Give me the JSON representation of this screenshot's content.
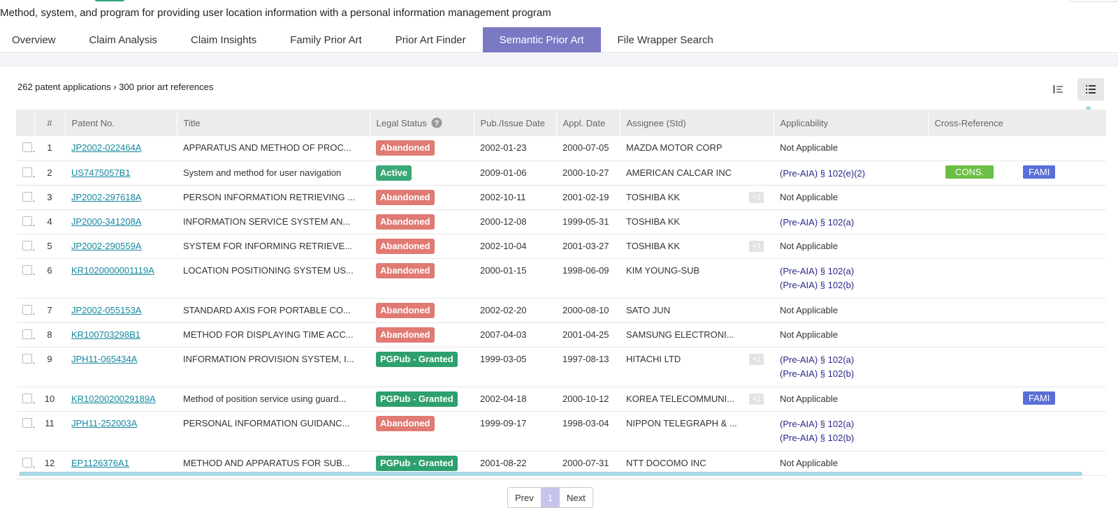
{
  "document": {
    "title": "Method, system, and program for providing user location information with a personal information management program"
  },
  "tabs": [
    {
      "label": "Overview"
    },
    {
      "label": "Claim Analysis"
    },
    {
      "label": "Claim Insights"
    },
    {
      "label": "Family Prior Art"
    },
    {
      "label": "Prior Art Finder"
    },
    {
      "label": "Semantic Prior Art",
      "active": true
    },
    {
      "label": "File Wrapper Search"
    }
  ],
  "summary": {
    "text": "262 patent applications › 300 prior art references"
  },
  "view_buttons": {
    "split_icon": "split-view-icon",
    "list_icon": "list-view-icon"
  },
  "columns": {
    "num": "#",
    "patent_no": "Patent No.",
    "title": "Title",
    "legal_status": "Legal Status",
    "pub_date": "Pub./Issue Date",
    "appl_date": "Appl. Date",
    "assignee": "Assignee (Std)",
    "applicability": "Applicability",
    "cross_ref": "Cross-Reference"
  },
  "rows": [
    {
      "num": "1",
      "patent_no": "JP2002-022464A",
      "title": "APPARATUS AND METHOD OF PROC...",
      "status": "Abandoned",
      "pub": "2002-01-23",
      "appl": "2000-07-05",
      "assignee": "MAZDA MOTOR CORP",
      "plus": "",
      "applicability": [
        "Not Applicable"
      ],
      "cons": "",
      "fami": ""
    },
    {
      "num": "2",
      "patent_no": "US7475057B1",
      "title": "System and method for user navigation",
      "status": "Active",
      "pub": "2009-01-06",
      "appl": "2000-10-27",
      "assignee": "AMERICAN CALCAR INC",
      "plus": "",
      "applicability": [
        "(Pre-AIA) § 102(e)(2)"
      ],
      "cons": "CONS.",
      "fami": "FAMI"
    },
    {
      "num": "3",
      "patent_no": "JP2002-297618A",
      "title": "PERSON INFORMATION RETRIEVING ...",
      "status": "Abandoned",
      "pub": "2002-10-11",
      "appl": "2001-02-19",
      "assignee": "TOSHIBA KK",
      "plus": "+1",
      "applicability": [
        "Not Applicable"
      ],
      "cons": "",
      "fami": ""
    },
    {
      "num": "4",
      "patent_no": "JP2000-341208A",
      "title": "INFORMATION SERVICE SYSTEM AN...",
      "status": "Abandoned",
      "pub": "2000-12-08",
      "appl": "1999-05-31",
      "assignee": "TOSHIBA KK",
      "plus": "",
      "applicability": [
        "(Pre-AIA) § 102(a)"
      ],
      "cons": "",
      "fami": ""
    },
    {
      "num": "5",
      "patent_no": "JP2002-290559A",
      "title": "SYSTEM FOR INFORMING RETRIEVE...",
      "status": "Abandoned",
      "pub": "2002-10-04",
      "appl": "2001-03-27",
      "assignee": "TOSHIBA KK",
      "plus": "+1",
      "applicability": [
        "Not Applicable"
      ],
      "cons": "",
      "fami": ""
    },
    {
      "num": "6",
      "patent_no": "KR1020000001119A",
      "title": "LOCATION POSITIONING SYSTEM US...",
      "status": "Abandoned",
      "pub": "2000-01-15",
      "appl": "1998-06-09",
      "assignee": "KIM YOUNG-SUB",
      "plus": "",
      "applicability": [
        "(Pre-AIA) § 102(a)",
        "(Pre-AIA) § 102(b)"
      ],
      "cons": "",
      "fami": ""
    },
    {
      "num": "7",
      "patent_no": "JP2002-055153A",
      "title": "STANDARD AXIS FOR PORTABLE CO...",
      "status": "Abandoned",
      "pub": "2002-02-20",
      "appl": "2000-08-10",
      "assignee": "SATO JUN",
      "plus": "",
      "applicability": [
        "Not Applicable"
      ],
      "cons": "",
      "fami": ""
    },
    {
      "num": "8",
      "patent_no": "KR100703298B1",
      "title": "METHOD FOR DISPLAYING TIME ACC...",
      "status": "Abandoned",
      "pub": "2007-04-03",
      "appl": "2001-04-25",
      "assignee": "SAMSUNG ELECTRONI...",
      "plus": "",
      "applicability": [
        "Not Applicable"
      ],
      "cons": "",
      "fami": ""
    },
    {
      "num": "9",
      "patent_no": "JPH11-065434A",
      "title": "INFORMATION PROVISION SYSTEM, I...",
      "status": "PGPub - Granted",
      "pub": "1999-03-05",
      "appl": "1997-08-13",
      "assignee": "HITACHI LTD",
      "plus": "+1",
      "applicability": [
        "(Pre-AIA) § 102(a)",
        "(Pre-AIA) § 102(b)"
      ],
      "cons": "",
      "fami": ""
    },
    {
      "num": "10",
      "patent_no": "KR1020020029189A",
      "title": "Method of position service using guard...",
      "status": "PGPub - Granted",
      "pub": "2002-04-18",
      "appl": "2000-10-12",
      "assignee": "KOREA TELECOMMUNI...",
      "plus": "+1",
      "applicability": [
        "Not Applicable"
      ],
      "cons": "",
      "fami": "FAMI"
    },
    {
      "num": "11",
      "patent_no": "JPH11-252003A",
      "title": "PERSONAL INFORMATION GUIDANC...",
      "status": "Abandoned",
      "pub": "1999-09-17",
      "appl": "1998-03-04",
      "assignee": "NIPPON TELEGRAPH & ...",
      "plus": "",
      "applicability": [
        "(Pre-AIA) § 102(a)",
        "(Pre-AIA) § 102(b)"
      ],
      "cons": "",
      "fami": ""
    },
    {
      "num": "12",
      "patent_no": "EP1126376A1",
      "title": "METHOD AND APPARATUS FOR SUB...",
      "status": "PGPub - Granted",
      "pub": "2001-08-22",
      "appl": "2000-07-31",
      "assignee": "NTT DOCOMO INC",
      "plus": "",
      "applicability": [
        "Not Applicable"
      ],
      "cons": "",
      "fami": ""
    }
  ],
  "pagination": {
    "prev": "Prev",
    "current": "1",
    "next": "Next"
  },
  "colors": {
    "active_tab": "#7b78c4",
    "abandoned": "#e07a73",
    "active": "#3aa877",
    "granted": "#2ea06f",
    "link": "#14879d",
    "cons": "#6cbf44",
    "fami": "#5a6fd6"
  }
}
